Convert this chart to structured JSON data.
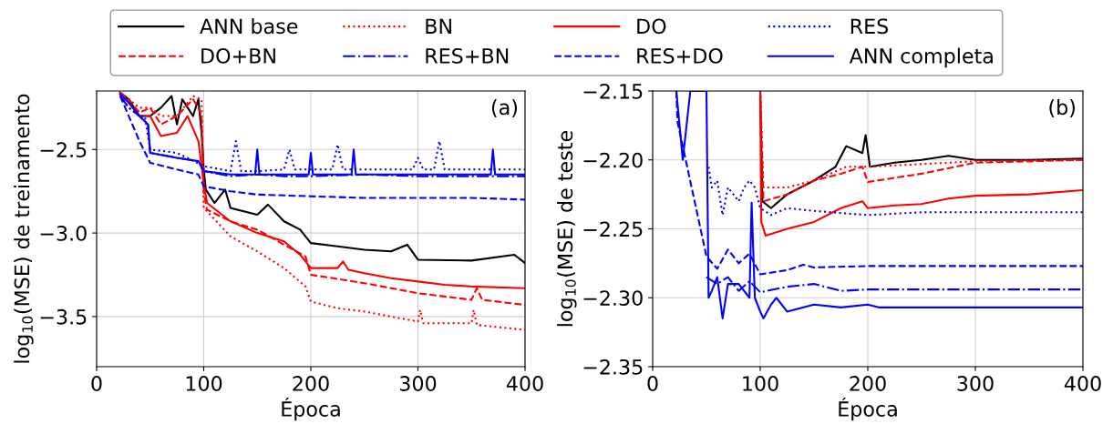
{
  "chart_data": [
    {
      "type": "line",
      "xlabel": "Época",
      "ylabel": "log$_{10}$(MSE) de treinamento",
      "annotations": [
        "(a)"
      ],
      "xlim": [
        0,
        400
      ],
      "ylim": [
        -3.8,
        -2.15
      ],
      "xticks": [
        0,
        100,
        200,
        300,
        400
      ],
      "yticks": [
        {
          "value": -3.5,
          "label": "−3.5"
        },
        {
          "value": -3.0,
          "label": "−3.0"
        },
        {
          "value": -2.5,
          "label": "−2.5"
        }
      ],
      "grid": true,
      "legend": "top",
      "series": [
        {
          "name": "ANN base",
          "color": "#000000",
          "line_style": "solid",
          "x": [
            22,
            30,
            40,
            50,
            60,
            70,
            75,
            80,
            90,
            95,
            98,
            100,
            102,
            105,
            110,
            120,
            125,
            150,
            160,
            175,
            190,
            200,
            225,
            250,
            275,
            290,
            300,
            350,
            390,
            400
          ],
          "values": [
            -2.16,
            -2.2,
            -2.3,
            -2.3,
            -2.25,
            -2.18,
            -2.35,
            -2.2,
            -2.3,
            -2.2,
            -2.4,
            -2.62,
            -2.74,
            -2.77,
            -2.82,
            -2.74,
            -2.85,
            -2.89,
            -2.83,
            -2.93,
            -2.98,
            -3.06,
            -3.08,
            -3.1,
            -3.11,
            -3.07,
            -3.16,
            -3.165,
            -3.13,
            -3.18
          ]
        },
        {
          "name": "DO+BN",
          "color": "#ff0000",
          "line_style": "dashed",
          "x": [
            22,
            30,
            40,
            50,
            60,
            75,
            90,
            95,
            98,
            100,
            103,
            125,
            150,
            175,
            195,
            200,
            250,
            300,
            350,
            355,
            360,
            400
          ],
          "values": [
            -2.16,
            -2.2,
            -2.28,
            -2.25,
            -2.35,
            -2.3,
            -2.2,
            -2.25,
            -2.3,
            -2.75,
            -2.86,
            -2.93,
            -2.98,
            -3.07,
            -3.14,
            -3.25,
            -3.3,
            -3.36,
            -3.4,
            -3.33,
            -3.4,
            -3.43
          ]
        },
        {
          "name": "BN",
          "color": "#ff0000",
          "line_style": "dotted",
          "x": [
            22,
            30,
            40,
            50,
            60,
            75,
            90,
            98,
            100,
            103,
            125,
            150,
            175,
            195,
            200,
            225,
            250,
            300,
            302,
            305,
            350,
            352,
            355,
            400
          ],
          "values": [
            -2.16,
            -2.2,
            -2.25,
            -2.25,
            -2.3,
            -2.3,
            -2.18,
            -2.2,
            -2.85,
            -2.87,
            -3.02,
            -3.11,
            -3.21,
            -3.32,
            -3.41,
            -3.45,
            -3.47,
            -3.53,
            -3.46,
            -3.54,
            -3.54,
            -3.46,
            -3.55,
            -3.58
          ]
        },
        {
          "name": "RES+BN",
          "color": "#0000ff",
          "line_style": "dashdot",
          "x": [
            22,
            30,
            40,
            48,
            50,
            75,
            95,
            100,
            125,
            150,
            175,
            200,
            250,
            300,
            350,
            400
          ],
          "values": [
            -2.18,
            -2.25,
            -2.3,
            -2.35,
            -2.52,
            -2.55,
            -2.57,
            -2.63,
            -2.66,
            -2.65,
            -2.66,
            -2.66,
            -2.65,
            -2.66,
            -2.66,
            -2.66
          ]
        },
        {
          "name": "DO",
          "color": "#ff0000",
          "line_style": "solid",
          "x": [
            22,
            30,
            40,
            50,
            60,
            75,
            85,
            95,
            100,
            103,
            125,
            150,
            175,
            190,
            200,
            225,
            230,
            235,
            250,
            275,
            300,
            325,
            350,
            400
          ],
          "values": [
            -2.16,
            -2.22,
            -2.3,
            -2.3,
            -2.42,
            -2.4,
            -2.3,
            -2.45,
            -2.7,
            -2.82,
            -2.93,
            -3.0,
            -3.05,
            -3.13,
            -3.21,
            -3.21,
            -3.17,
            -3.22,
            -3.24,
            -3.27,
            -3.29,
            -3.31,
            -3.32,
            -3.33
          ]
        },
        {
          "name": "RES+DO",
          "color": "#0000ff",
          "line_style": "dashed",
          "x": [
            22,
            30,
            40,
            50,
            75,
            95,
            100,
            125,
            150,
            200,
            250,
            300,
            350,
            400
          ],
          "values": [
            -2.18,
            -2.3,
            -2.45,
            -2.58,
            -2.62,
            -2.65,
            -2.72,
            -2.75,
            -2.77,
            -2.78,
            -2.79,
            -2.79,
            -2.79,
            -2.8
          ]
        },
        {
          "name": "RES",
          "color": "#0000ff",
          "line_style": "dotted",
          "x": [
            22,
            30,
            40,
            45,
            50,
            75,
            100,
            125,
            130,
            135,
            150,
            175,
            180,
            185,
            220,
            225,
            230,
            295,
            300,
            305,
            315,
            320,
            325,
            400
          ],
          "values": [
            -2.18,
            -2.25,
            -2.3,
            -2.3,
            -2.5,
            -2.52,
            -2.6,
            -2.63,
            -2.45,
            -2.63,
            -2.63,
            -2.62,
            -2.5,
            -2.62,
            -2.62,
            -2.47,
            -2.62,
            -2.62,
            -2.55,
            -2.62,
            -2.62,
            -2.45,
            -2.62,
            -2.62
          ]
        },
        {
          "name": "ANN completa",
          "color": "#0000ff",
          "line_style": "solid",
          "x": [
            22,
            30,
            40,
            48,
            50,
            75,
            95,
            100,
            125,
            148,
            150,
            152,
            198,
            200,
            202,
            238,
            240,
            242,
            368,
            370,
            372,
            400
          ],
          "values": [
            -2.17,
            -2.22,
            -2.3,
            -2.35,
            -2.52,
            -2.55,
            -2.57,
            -2.63,
            -2.65,
            -2.65,
            -2.5,
            -2.65,
            -2.65,
            -2.52,
            -2.65,
            -2.65,
            -2.5,
            -2.65,
            -2.65,
            -2.5,
            -2.65,
            -2.65
          ]
        }
      ]
    },
    {
      "type": "line",
      "xlabel": "Época",
      "ylabel": "log$_{10}$(MSE) de teste",
      "annotations": [
        "(b)"
      ],
      "xlim": [
        0,
        400
      ],
      "ylim": [
        -2.35,
        -2.15
      ],
      "xticks": [
        0,
        100,
        200,
        300,
        400
      ],
      "yticks": [
        {
          "value": -2.35,
          "label": "−2.35"
        },
        {
          "value": -2.3,
          "label": "−2.30"
        },
        {
          "value": -2.25,
          "label": "−2.25"
        },
        {
          "value": -2.2,
          "label": "−2.20"
        },
        {
          "value": -2.15,
          "label": "−2.15"
        }
      ],
      "grid": true,
      "series": [
        {
          "color": "#000000",
          "line_style": "solid",
          "x": [
            100,
            102,
            110,
            125,
            150,
            170,
            180,
            195,
            198,
            202,
            225,
            250,
            275,
            300,
            350,
            400
          ],
          "values": [
            -2.15,
            -2.23,
            -2.235,
            -2.225,
            -2.215,
            -2.205,
            -2.19,
            -2.195,
            -2.182,
            -2.205,
            -2.202,
            -2.2,
            -2.197,
            -2.2,
            -2.2,
            -2.199
          ]
        },
        {
          "color": "#ff0000",
          "line_style": "dashed",
          "x": [
            100,
            103,
            125,
            150,
            175,
            195,
            200,
            250,
            300,
            400
          ],
          "values": [
            -2.15,
            -2.23,
            -2.225,
            -2.215,
            -2.21,
            -2.205,
            -2.216,
            -2.21,
            -2.202,
            -2.2
          ]
        },
        {
          "color": "#ff0000",
          "line_style": "dotted",
          "x": [
            100,
            103,
            125,
            150,
            180,
            200,
            250,
            300,
            400
          ],
          "values": [
            -2.15,
            -2.22,
            -2.22,
            -2.215,
            -2.205,
            -2.205,
            -2.203,
            -2.201,
            -2.2
          ]
        },
        {
          "color": "#0000ff",
          "line_style": "dashdot",
          "x": [
            50,
            60,
            70,
            80,
            90,
            100,
            125,
            150,
            175,
            200,
            250,
            300,
            400
          ],
          "values": [
            -2.285,
            -2.29,
            -2.285,
            -2.295,
            -2.288,
            -2.296,
            -2.292,
            -2.29,
            -2.295,
            -2.294,
            -2.294,
            -2.294,
            -2.294
          ]
        },
        {
          "color": "#ff0000",
          "line_style": "solid",
          "x": [
            100,
            101,
            105,
            125,
            150,
            175,
            195,
            200,
            225,
            250,
            275,
            300,
            350,
            400
          ],
          "values": [
            -2.15,
            -2.245,
            -2.255,
            -2.25,
            -2.245,
            -2.235,
            -2.23,
            -2.235,
            -2.233,
            -2.232,
            -2.228,
            -2.226,
            -2.225,
            -2.222
          ]
        },
        {
          "color": "#0000ff",
          "line_style": "dashed",
          "x": [
            22,
            23,
            50,
            60,
            70,
            80,
            90,
            100,
            125,
            140,
            150,
            200,
            250,
            300,
            400
          ],
          "values": [
            -2.15,
            -2.172,
            -2.27,
            -2.279,
            -2.265,
            -2.275,
            -2.268,
            -2.283,
            -2.28,
            -2.276,
            -2.278,
            -2.277,
            -2.277,
            -2.277,
            -2.277
          ]
        },
        {
          "color": "#0000ff",
          "line_style": "dotted",
          "x": [
            52,
            55,
            60,
            65,
            70,
            75,
            80,
            85,
            90,
            95,
            100,
            110,
            125,
            150,
            200,
            250,
            300,
            400
          ],
          "values": [
            -2.205,
            -2.22,
            -2.215,
            -2.24,
            -2.22,
            -2.225,
            -2.23,
            -2.22,
            -2.215,
            -2.22,
            -2.235,
            -2.24,
            -2.235,
            -2.237,
            -2.24,
            -2.238,
            -2.238,
            -2.238
          ]
        },
        {
          "color": "#0000ff",
          "line_style": "solid",
          "x": [
            22,
            28,
            35,
            50,
            52,
            55,
            60,
            65,
            70,
            80,
            90,
            92,
            95,
            100,
            103,
            110,
            115,
            125,
            150,
            175,
            200,
            210,
            250,
            300,
            400
          ],
          "values": [
            -2.15,
            -2.2,
            -2.15,
            -2.15,
            -2.3,
            -2.295,
            -2.285,
            -2.315,
            -2.29,
            -2.29,
            -2.3,
            -2.231,
            -2.3,
            -2.31,
            -2.315,
            -2.305,
            -2.3,
            -2.31,
            -2.305,
            -2.307,
            -2.305,
            -2.307,
            -2.307,
            -2.307,
            -2.307
          ]
        }
      ]
    }
  ]
}
